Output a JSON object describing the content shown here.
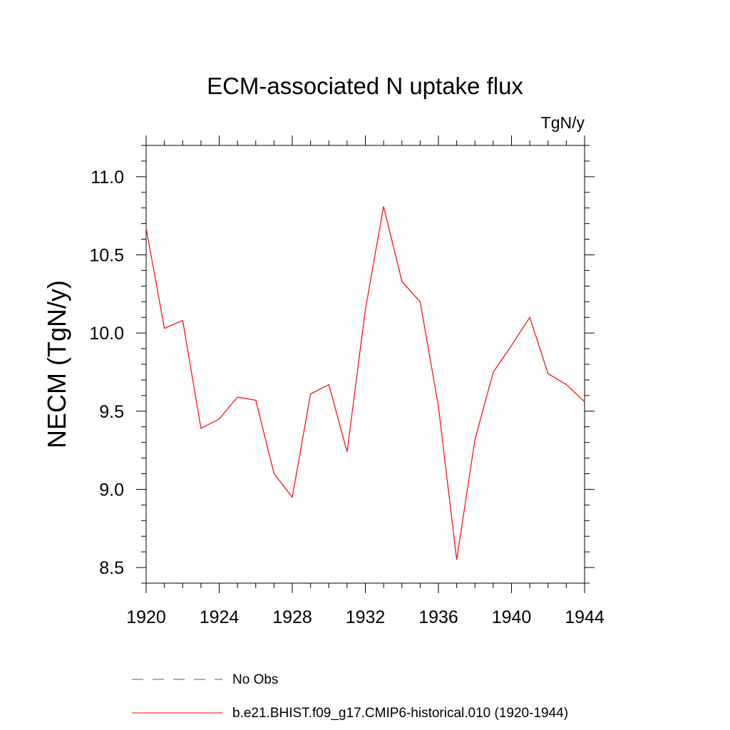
{
  "chart_data": {
    "type": "line",
    "title": "ECM-associated N uptake flux",
    "units": "TgN/y",
    "ylabel": "NECM  (TgN/y)",
    "xlabel": "",
    "xlim": [
      1920,
      1944
    ],
    "ylim": [
      8.4,
      11.2
    ],
    "xticks": [
      1920,
      1924,
      1928,
      1932,
      1936,
      1940,
      1944
    ],
    "xtick_labels": [
      "1920",
      "1924",
      "1928",
      "1932",
      "1936",
      "1940",
      "1944"
    ],
    "yticks": [
      8.5,
      9.0,
      9.5,
      10.0,
      10.5,
      11.0
    ],
    "ytick_labels": [
      "8.5",
      "9.0",
      "9.5",
      "10.0",
      "10.5",
      "11.0"
    ],
    "grid": false,
    "legend_position": "bottom",
    "legend": [
      {
        "name": "No Obs",
        "color": "#5555aa",
        "style": "dashed"
      },
      {
        "name": "b.e21.BHIST.f09_g17.CMIP6-historical.010 (1920-1944)",
        "color": "#ff0000",
        "style": "solid"
      }
    ],
    "series": [
      {
        "name": "b.e21.BHIST.f09_g17.CMIP6-historical.010 (1920-1944)",
        "color": "#ff0000",
        "x": [
          1920,
          1921,
          1922,
          1923,
          1924,
          1925,
          1926,
          1927,
          1928,
          1929,
          1930,
          1931,
          1932,
          1933,
          1934,
          1935,
          1936,
          1937,
          1938,
          1939,
          1940,
          1941,
          1942,
          1943,
          1944
        ],
        "y": [
          10.67,
          10.03,
          10.08,
          9.39,
          9.45,
          9.59,
          9.57,
          9.1,
          8.95,
          9.61,
          9.67,
          9.24,
          10.15,
          10.81,
          10.33,
          10.2,
          9.53,
          8.55,
          9.32,
          9.75,
          9.92,
          10.1,
          9.74,
          9.67,
          9.56
        ]
      }
    ]
  }
}
